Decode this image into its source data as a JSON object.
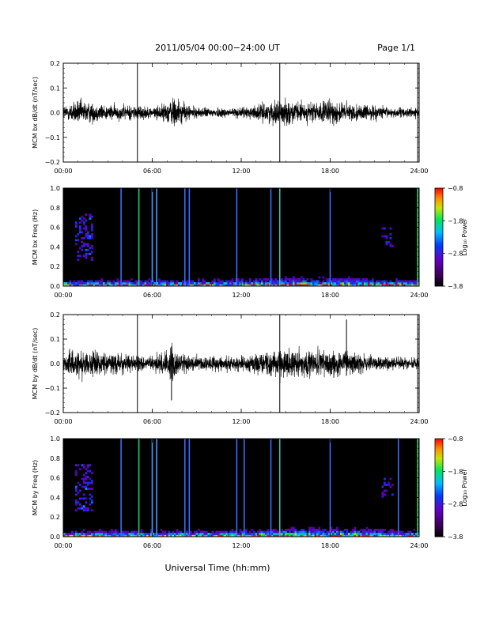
{
  "header": {
    "title": "2011/05/04  00:00−24:00 UT",
    "page": "Page 1/1"
  },
  "xlabel": "Universal Time (hh:mm)",
  "chart_data": [
    {
      "type": "line",
      "ylabel": "MCM bx dB/dt (nT/sec)",
      "xlim": [
        0,
        24
      ],
      "ylim": [
        -0.2,
        0.2
      ],
      "xticks": [
        "00:00",
        "06:00",
        "12:00",
        "18:00",
        "24:00"
      ],
      "yticks": [
        "−0.2",
        "−0.1",
        "0.0",
        "0.1",
        "0.2"
      ],
      "x_hours": [
        0,
        1,
        2,
        3,
        4,
        5,
        5.1,
        6,
        7,
        7.5,
        8,
        9,
        10,
        11,
        12,
        13,
        14,
        14.6,
        15,
        16,
        17,
        18,
        19,
        20,
        21,
        22,
        23,
        24
      ],
      "envelope": [
        0.03,
        0.05,
        0.04,
        0.03,
        0.03,
        0.03,
        0.03,
        0.02,
        0.04,
        0.07,
        0.04,
        0.02,
        0.02,
        0.02,
        0.02,
        0.03,
        0.04,
        0.05,
        0.05,
        0.04,
        0.04,
        0.05,
        0.04,
        0.03,
        0.03,
        0.02,
        0.02,
        0.02
      ],
      "spikes": [
        {
          "x": 5.0,
          "y": -0.2,
          "y2": 0.2
        },
        {
          "x": 14.6,
          "y": -0.2,
          "y2": 0.2
        },
        {
          "x": 23.9,
          "y": -0.2,
          "y2": 0.2
        }
      ]
    },
    {
      "type": "heatmap",
      "ylabel": "MCM bx Freq (Hz)",
      "xlim": [
        0,
        24
      ],
      "ylim": [
        0,
        1.0
      ],
      "xticks": [
        "00:00",
        "06:00",
        "12:00",
        "18:00",
        "24:00"
      ],
      "yticks": [
        "0.0",
        "0.2",
        "0.4",
        "0.6",
        "0.8",
        "1.0"
      ],
      "colorbar": {
        "label": "Log₁₀ Power",
        "range": [
          -3.8,
          -0.8
        ],
        "ticks": [
          "−0.8",
          "−1.8",
          "−2.8",
          "−3.8"
        ]
      },
      "vertical_lines": [
        {
          "x": 3.9,
          "color": "#3c6cff"
        },
        {
          "x": 5.1,
          "color": "#22cc66"
        },
        {
          "x": 6.0,
          "color": "#3aa0ff"
        },
        {
          "x": 6.3,
          "color": "#3aa0ff"
        },
        {
          "x": 8.2,
          "color": "#3c6cff"
        },
        {
          "x": 8.5,
          "color": "#3c6cff"
        },
        {
          "x": 11.7,
          "color": "#3c6cff"
        },
        {
          "x": 14.0,
          "color": "#3c6cff"
        },
        {
          "x": 14.6,
          "color": "#44bbaa"
        },
        {
          "x": 18.0,
          "color": "#3c6cff"
        },
        {
          "x": 23.9,
          "color": "#33dd77"
        }
      ]
    },
    {
      "type": "line",
      "ylabel": "MCM by dB/dt (nT/sec)",
      "xlim": [
        0,
        24
      ],
      "ylim": [
        -0.2,
        0.2
      ],
      "xticks": [
        "00:00",
        "06:00",
        "12:00",
        "18:00",
        "24:00"
      ],
      "yticks": [
        "−0.2",
        "−0.1",
        "0.0",
        "0.1",
        "0.2"
      ],
      "x_hours": [
        0,
        1,
        2,
        3,
        4,
        5,
        5.1,
        6,
        7,
        7.3,
        7.5,
        8,
        9,
        10,
        11,
        12,
        13,
        14,
        14.6,
        15,
        16,
        17,
        18,
        19,
        20,
        21,
        22,
        23,
        24
      ],
      "envelope": [
        0.04,
        0.06,
        0.05,
        0.04,
        0.04,
        0.03,
        0.03,
        0.03,
        0.05,
        0.09,
        0.06,
        0.04,
        0.03,
        0.03,
        0.03,
        0.03,
        0.04,
        0.05,
        0.06,
        0.06,
        0.05,
        0.05,
        0.06,
        0.05,
        0.04,
        0.03,
        0.03,
        0.03,
        0.02
      ],
      "spikes": [
        {
          "x": 5.0,
          "y": -0.2,
          "y2": 0.2
        },
        {
          "x": 7.3,
          "y": -0.15,
          "y2": 0.07
        },
        {
          "x": 14.6,
          "y": -0.2,
          "y2": 0.2
        },
        {
          "x": 19.1,
          "y": -0.05,
          "y2": 0.18
        },
        {
          "x": 23.9,
          "y": -0.2,
          "y2": 0.2
        }
      ]
    },
    {
      "type": "heatmap",
      "ylabel": "MCM by Freq (Hz)",
      "xlim": [
        0,
        24
      ],
      "ylim": [
        0,
        1.0
      ],
      "xticks": [
        "00:00",
        "06:00",
        "12:00",
        "18:00",
        "24:00"
      ],
      "yticks": [
        "0.0",
        "0.2",
        "0.4",
        "0.6",
        "0.8",
        "1.0"
      ],
      "colorbar": {
        "label": "Log₁₀ Power",
        "range": [
          -3.8,
          -0.8
        ],
        "ticks": [
          "−0.8",
          "−1.8",
          "−2.8",
          "−3.8"
        ]
      },
      "vertical_lines": [
        {
          "x": 3.9,
          "color": "#3c6cff"
        },
        {
          "x": 5.1,
          "color": "#22cc66"
        },
        {
          "x": 6.0,
          "color": "#3aa0ff"
        },
        {
          "x": 6.3,
          "color": "#3aa0ff"
        },
        {
          "x": 8.2,
          "color": "#3c6cff"
        },
        {
          "x": 8.5,
          "color": "#3c6cff"
        },
        {
          "x": 11.7,
          "color": "#3c6cff"
        },
        {
          "x": 12.2,
          "color": "#3c6cff"
        },
        {
          "x": 14.0,
          "color": "#3c6cff"
        },
        {
          "x": 14.6,
          "color": "#44bbaa"
        },
        {
          "x": 18.0,
          "color": "#3c6cff"
        },
        {
          "x": 22.6,
          "color": "#3c6cff"
        },
        {
          "x": 23.9,
          "color": "#33dd77"
        }
      ]
    }
  ]
}
